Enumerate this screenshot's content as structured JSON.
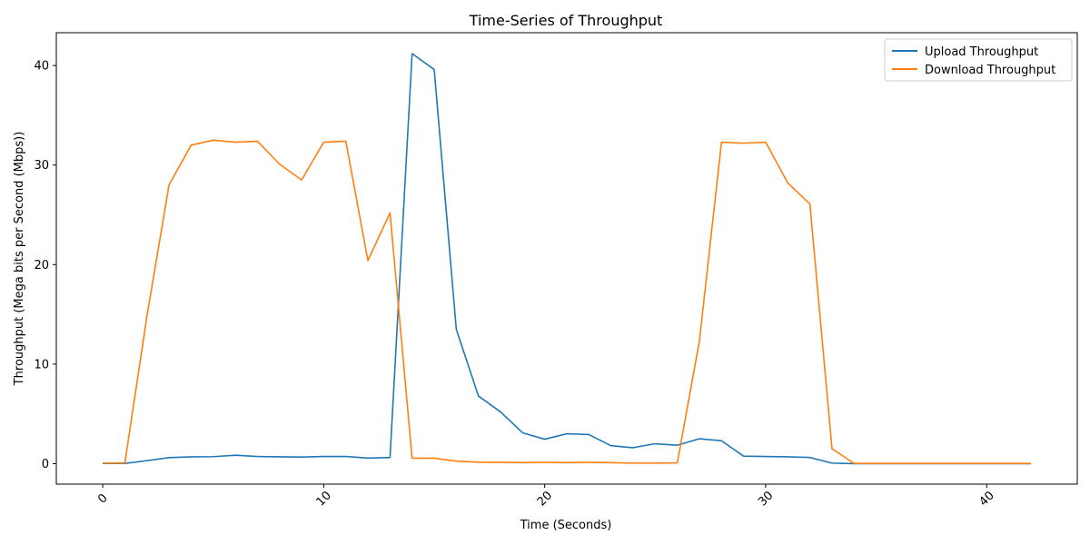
{
  "chart_data": {
    "type": "line",
    "title": "Time-Series of Throughput",
    "xlabel": "Time (Seconds)",
    "ylabel": "Throughput (Mega bits per Second (Mbps))",
    "xlim": [
      -2.1,
      44.1
    ],
    "ylim": [
      -2.06,
      43.3
    ],
    "x_ticks": [
      0,
      10,
      20,
      30,
      40
    ],
    "x_tick_labels": [
      "0",
      "10",
      "20",
      "30",
      "40"
    ],
    "x_tick_rotation": 45,
    "y_ticks": [
      0,
      10,
      20,
      30,
      40
    ],
    "y_tick_labels": [
      "0",
      "10",
      "20",
      "30",
      "40"
    ],
    "grid": false,
    "legend_position": "top-right",
    "x": [
      0,
      1,
      2,
      3,
      4,
      5,
      6,
      7,
      8,
      9,
      10,
      11,
      12,
      13,
      14,
      15,
      16,
      17,
      18,
      19,
      20,
      21,
      22,
      23,
      24,
      25,
      26,
      27,
      28,
      29,
      30,
      31,
      32,
      33,
      34,
      35,
      36,
      37,
      38,
      39,
      40,
      41,
      42
    ],
    "series": [
      {
        "name": "Upload Throughput",
        "color": "#1f77b4",
        "values": [
          0.02,
          0.02,
          0.3,
          0.6,
          0.68,
          0.7,
          0.84,
          0.72,
          0.68,
          0.66,
          0.72,
          0.72,
          0.56,
          0.62,
          41.2,
          39.6,
          13.5,
          6.8,
          5.2,
          3.1,
          2.45,
          3.0,
          2.92,
          1.8,
          1.6,
          2.0,
          1.85,
          2.5,
          2.3,
          0.75,
          0.72,
          0.68,
          0.62,
          0.05,
          0.0,
          0.0,
          0.0,
          0.0,
          0.0,
          0.0,
          0.0,
          0.0,
          0.0
        ]
      },
      {
        "name": "Download Throughput",
        "color": "#ff7f0e",
        "values": [
          0.05,
          0.05,
          14.8,
          28.0,
          32.0,
          32.5,
          32.3,
          32.4,
          30.1,
          28.5,
          32.3,
          32.4,
          20.4,
          25.2,
          0.55,
          0.55,
          0.25,
          0.15,
          0.12,
          0.1,
          0.12,
          0.1,
          0.12,
          0.1,
          0.05,
          0.05,
          0.08,
          12.3,
          32.3,
          32.2,
          32.3,
          28.2,
          26.1,
          1.5,
          0.02,
          0.02,
          0.02,
          0.02,
          0.02,
          0.02,
          0.02,
          0.02,
          0.02
        ]
      }
    ]
  }
}
